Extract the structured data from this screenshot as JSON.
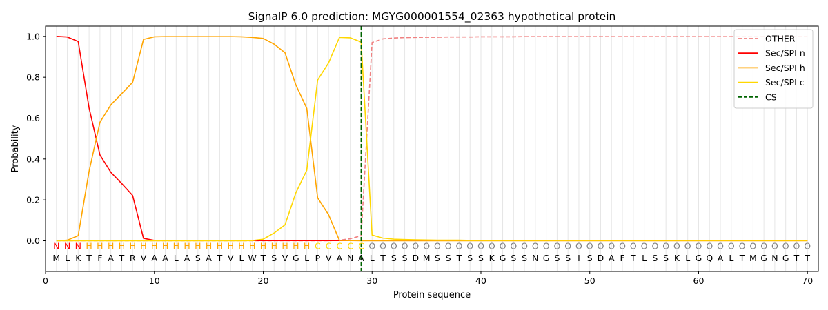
{
  "chart_data": {
    "type": "line",
    "title": "SignalP 6.0 prediction: MGYG000001554_02363 hypothetical protein",
    "xlabel": "Protein sequence",
    "ylabel": "Probability",
    "xlim": [
      0,
      71
    ],
    "ylim": [
      -0.15,
      1.05
    ],
    "x_ticks": [
      0,
      10,
      20,
      30,
      40,
      50,
      60,
      70
    ],
    "y_ticks": [
      0.0,
      0.2,
      0.4,
      0.6,
      0.8,
      1.0
    ],
    "y_tick_labels": [
      "0.0",
      "0.2",
      "0.4",
      "0.6",
      "0.8",
      "1.0"
    ],
    "grid": "vertical lines at each residue",
    "legend_position": "top-right",
    "sequence": [
      "M",
      "L",
      "K",
      "T",
      "F",
      "A",
      "T",
      "R",
      "V",
      "A",
      "A",
      "L",
      "A",
      "S",
      "A",
      "T",
      "V",
      "L",
      "W",
      "T",
      "S",
      "V",
      "G",
      "L",
      "P",
      "V",
      "A",
      "N",
      "A",
      "L",
      "T",
      "S",
      "S",
      "D",
      "M",
      "S",
      "S",
      "T",
      "S",
      "S",
      "K",
      "G",
      "S",
      "S",
      "N",
      "G",
      "S",
      "S",
      "I",
      "S",
      "D",
      "A",
      "F",
      "T",
      "L",
      "S",
      "S",
      "K",
      "L",
      "G",
      "Q",
      "A",
      "L",
      "T",
      "M",
      "G",
      "N",
      "G",
      "T",
      "T"
    ],
    "region_labels": [
      "N",
      "N",
      "N",
      "H",
      "H",
      "H",
      "H",
      "H",
      "H",
      "H",
      "H",
      "H",
      "H",
      "H",
      "H",
      "H",
      "H",
      "H",
      "H",
      "H",
      "H",
      "H",
      "H",
      "H",
      "C",
      "C",
      "C",
      "C",
      "C",
      "O",
      "O",
      "O",
      "O",
      "O",
      "O",
      "O",
      "O",
      "O",
      "O",
      "O",
      "O",
      "O",
      "O",
      "O",
      "O",
      "O",
      "O",
      "O",
      "O",
      "O",
      "O",
      "O",
      "O",
      "O",
      "O",
      "O",
      "O",
      "O",
      "O",
      "O",
      "O",
      "O",
      "O",
      "O",
      "O",
      "O",
      "O",
      "O",
      "O",
      "O"
    ],
    "region_colors": {
      "N": "#ff0000",
      "H": "#ffa500",
      "C": "#ffd700",
      "O": "#808080"
    },
    "series": [
      {
        "name": "OTHER",
        "color": "#f08080",
        "dash": "dashed",
        "values": [
          0,
          0,
          0,
          0,
          0,
          0,
          0,
          0,
          0,
          0,
          0,
          0,
          0,
          0,
          0,
          0,
          0,
          0,
          0,
          0,
          0,
          0,
          0,
          0,
          0,
          0,
          0.003,
          0.01,
          0.025,
          0.97,
          0.988,
          0.992,
          0.994,
          0.995,
          0.996,
          0.996,
          0.997,
          0.997,
          0.997,
          0.998,
          0.998,
          0.998,
          0.998,
          0.999,
          0.999,
          0.999,
          0.999,
          0.999,
          0.999,
          0.999,
          0.999,
          0.999,
          0.999,
          0.999,
          0.999,
          0.999,
          0.999,
          0.999,
          0.999,
          0.999,
          0.999,
          0.999,
          0.999,
          0.999,
          0.999,
          0.999,
          0.999,
          0.999,
          0.999,
          0.999
        ]
      },
      {
        "name": "Sec/SPI n",
        "color": "#ff0000",
        "dash": "solid",
        "values": [
          1.0,
          0.997,
          0.975,
          0.65,
          0.42,
          0.335,
          0.28,
          0.222,
          0.012,
          0.002,
          0.001,
          0.001,
          0.001,
          0.001,
          0.001,
          0.001,
          0.001,
          0.001,
          0.001,
          0.001,
          0.001,
          0.001,
          0.001,
          0.001,
          0.001,
          0.001,
          0.001,
          0.001,
          0.001,
          0.001,
          0.001,
          0.001,
          0.001,
          0.001,
          0.001,
          0.001,
          0.001,
          0.001,
          0.001,
          0.001,
          0.001,
          0.001,
          0.001,
          0.001,
          0.001,
          0.001,
          0.001,
          0.001,
          0.001,
          0.001,
          0.001,
          0.001,
          0.001,
          0.001,
          0.001,
          0.001,
          0.001,
          0.001,
          0.001,
          0.001,
          0.001,
          0.001,
          0.001,
          0.001,
          0.001,
          0.001,
          0.001,
          0.001,
          0.001,
          0.001
        ]
      },
      {
        "name": "Sec/SPI h",
        "color": "#ffa500",
        "dash": "solid",
        "values": [
          0,
          0.003,
          0.025,
          0.34,
          0.58,
          0.665,
          0.72,
          0.775,
          0.985,
          0.998,
          0.999,
          0.999,
          0.999,
          0.999,
          0.999,
          0.999,
          0.999,
          0.998,
          0.995,
          0.99,
          0.962,
          0.92,
          0.762,
          0.648,
          0.21,
          0.128,
          0.002,
          0.001,
          0,
          0,
          0,
          0,
          0,
          0,
          0,
          0,
          0,
          0,
          0,
          0,
          0,
          0,
          0,
          0,
          0,
          0,
          0,
          0,
          0,
          0,
          0,
          0,
          0,
          0,
          0,
          0,
          0,
          0,
          0,
          0,
          0,
          0,
          0,
          0,
          0,
          0,
          0,
          0,
          0,
          0
        ]
      },
      {
        "name": "Sec/SPI c",
        "color": "#ffd700",
        "dash": "solid",
        "values": [
          0,
          0,
          0,
          0,
          0,
          0,
          0,
          0,
          0,
          0,
          0,
          0,
          0,
          0,
          0,
          0,
          0,
          0,
          0.001,
          0.008,
          0.038,
          0.078,
          0.235,
          0.345,
          0.787,
          0.87,
          0.995,
          0.993,
          0.972,
          0.028,
          0.013,
          0.008,
          0.006,
          0.005,
          0.004,
          0.003,
          0.003,
          0.003,
          0.002,
          0.002,
          0.002,
          0.002,
          0.002,
          0.002,
          0.002,
          0.002,
          0.002,
          0.002,
          0.002,
          0.002,
          0.002,
          0.002,
          0.002,
          0.002,
          0.002,
          0.002,
          0.002,
          0.002,
          0.002,
          0.002,
          0.002,
          0.002,
          0.002,
          0.002,
          0.002,
          0.002,
          0.002,
          0.002,
          0.002,
          0.002
        ]
      }
    ],
    "cs": {
      "name": "CS",
      "x": 29,
      "color": "#006400",
      "dash": "dashed"
    }
  }
}
